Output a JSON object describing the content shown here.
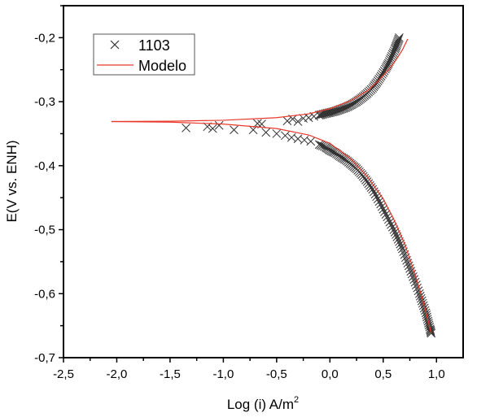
{
  "chart_data": {
    "type": "scatter",
    "title": "",
    "xlabel": "Log (i) A/m",
    "xlabel_sup": "2",
    "ylabel": "E(V vs. ENH)",
    "xlim": [
      -2.5,
      1.25
    ],
    "ylim": [
      -0.7,
      -0.15
    ],
    "xticks": [
      -2.5,
      -2.0,
      -1.5,
      -1.0,
      -0.5,
      0.0,
      0.5,
      1.0
    ],
    "xtick_labels": [
      "-2,5",
      "-2,0",
      "-1,5",
      "-1,0",
      "-0,5",
      "0,0",
      "0,5",
      "1,0"
    ],
    "yticks": [
      -0.2,
      -0.3,
      -0.4,
      -0.5,
      -0.6,
      -0.7
    ],
    "ytick_labels": [
      "-0,2",
      "-0,3",
      "-0,4",
      "-0,5",
      "-0,6",
      "-0,7"
    ],
    "grid": false,
    "legend_position": "top-left",
    "series": [
      {
        "name": "1103",
        "style": "x-marker",
        "color": "#333333",
        "points": [
          [
            -1.35,
            -0.341
          ],
          [
            -1.15,
            -0.339
          ],
          [
            -1.1,
            -0.342
          ],
          [
            -1.04,
            -0.337
          ],
          [
            -0.9,
            -0.344
          ],
          [
            -0.72,
            -0.344
          ],
          [
            -0.68,
            -0.334
          ],
          [
            -0.64,
            -0.335
          ],
          [
            -0.6,
            -0.348
          ],
          [
            -0.5,
            -0.35
          ],
          [
            -0.42,
            -0.353
          ],
          [
            -0.36,
            -0.356
          ],
          [
            -0.3,
            -0.358
          ],
          [
            -0.24,
            -0.36
          ],
          [
            -0.18,
            -0.362
          ],
          [
            -0.1,
            -0.367
          ],
          [
            -0.04,
            -0.371
          ],
          [
            0.0,
            -0.376
          ],
          [
            0.05,
            -0.38
          ],
          [
            0.1,
            -0.386
          ],
          [
            0.15,
            -0.391
          ],
          [
            0.2,
            -0.398
          ],
          [
            0.25,
            -0.405
          ],
          [
            0.3,
            -0.414
          ],
          [
            0.35,
            -0.425
          ],
          [
            0.4,
            -0.437
          ],
          [
            0.45,
            -0.452
          ],
          [
            0.5,
            -0.468
          ],
          [
            0.55,
            -0.484
          ],
          [
            0.6,
            -0.5
          ],
          [
            0.64,
            -0.515
          ],
          [
            0.68,
            -0.53
          ],
          [
            0.72,
            -0.548
          ],
          [
            0.76,
            -0.565
          ],
          [
            0.8,
            -0.582
          ],
          [
            0.84,
            -0.6
          ],
          [
            0.87,
            -0.615
          ],
          [
            0.9,
            -0.63
          ],
          [
            0.92,
            -0.643
          ],
          [
            0.94,
            -0.655
          ],
          [
            0.95,
            -0.662
          ],
          [
            -0.4,
            -0.33
          ],
          [
            -0.35,
            -0.327
          ],
          [
            -0.3,
            -0.331
          ],
          [
            -0.25,
            -0.326
          ],
          [
            -0.2,
            -0.325
          ],
          [
            -0.15,
            -0.323
          ],
          [
            -0.1,
            -0.321
          ],
          [
            -0.05,
            -0.319
          ],
          [
            0.0,
            -0.317
          ],
          [
            0.05,
            -0.315
          ],
          [
            0.1,
            -0.312
          ],
          [
            0.15,
            -0.309
          ],
          [
            0.2,
            -0.305
          ],
          [
            0.25,
            -0.3
          ],
          [
            0.3,
            -0.294
          ],
          [
            0.35,
            -0.287
          ],
          [
            0.4,
            -0.279
          ],
          [
            0.44,
            -0.27
          ],
          [
            0.48,
            -0.26
          ],
          [
            0.52,
            -0.249
          ],
          [
            0.55,
            -0.24
          ],
          [
            0.58,
            -0.229
          ],
          [
            0.61,
            -0.218
          ],
          [
            0.63,
            -0.209
          ],
          [
            0.65,
            -0.2
          ]
        ]
      },
      {
        "name": "Modelo",
        "style": "line",
        "color": "#e8392b",
        "branches": [
          [
            [
              -2.05,
              -0.331
            ],
            [
              -1.5,
              -0.3305
            ],
            [
              -1.0,
              -0.329
            ],
            [
              -0.5,
              -0.325
            ],
            [
              -0.2,
              -0.319
            ],
            [
              0.0,
              -0.311
            ],
            [
              0.2,
              -0.298
            ],
            [
              0.35,
              -0.283
            ],
            [
              0.45,
              -0.268
            ],
            [
              0.55,
              -0.25
            ],
            [
              0.62,
              -0.235
            ],
            [
              0.68,
              -0.219
            ],
            [
              0.73,
              -0.202
            ]
          ],
          [
            [
              -2.05,
              -0.331
            ],
            [
              -1.5,
              -0.332
            ],
            [
              -1.0,
              -0.335
            ],
            [
              -0.5,
              -0.342
            ],
            [
              -0.2,
              -0.352
            ],
            [
              0.0,
              -0.365
            ],
            [
              0.2,
              -0.39
            ],
            [
              0.35,
              -0.417
            ],
            [
              0.5,
              -0.452
            ],
            [
              0.6,
              -0.484
            ],
            [
              0.7,
              -0.522
            ],
            [
              0.8,
              -0.57
            ],
            [
              0.88,
              -0.615
            ],
            [
              0.93,
              -0.648
            ],
            [
              0.95,
              -0.662
            ]
          ]
        ]
      }
    ]
  }
}
